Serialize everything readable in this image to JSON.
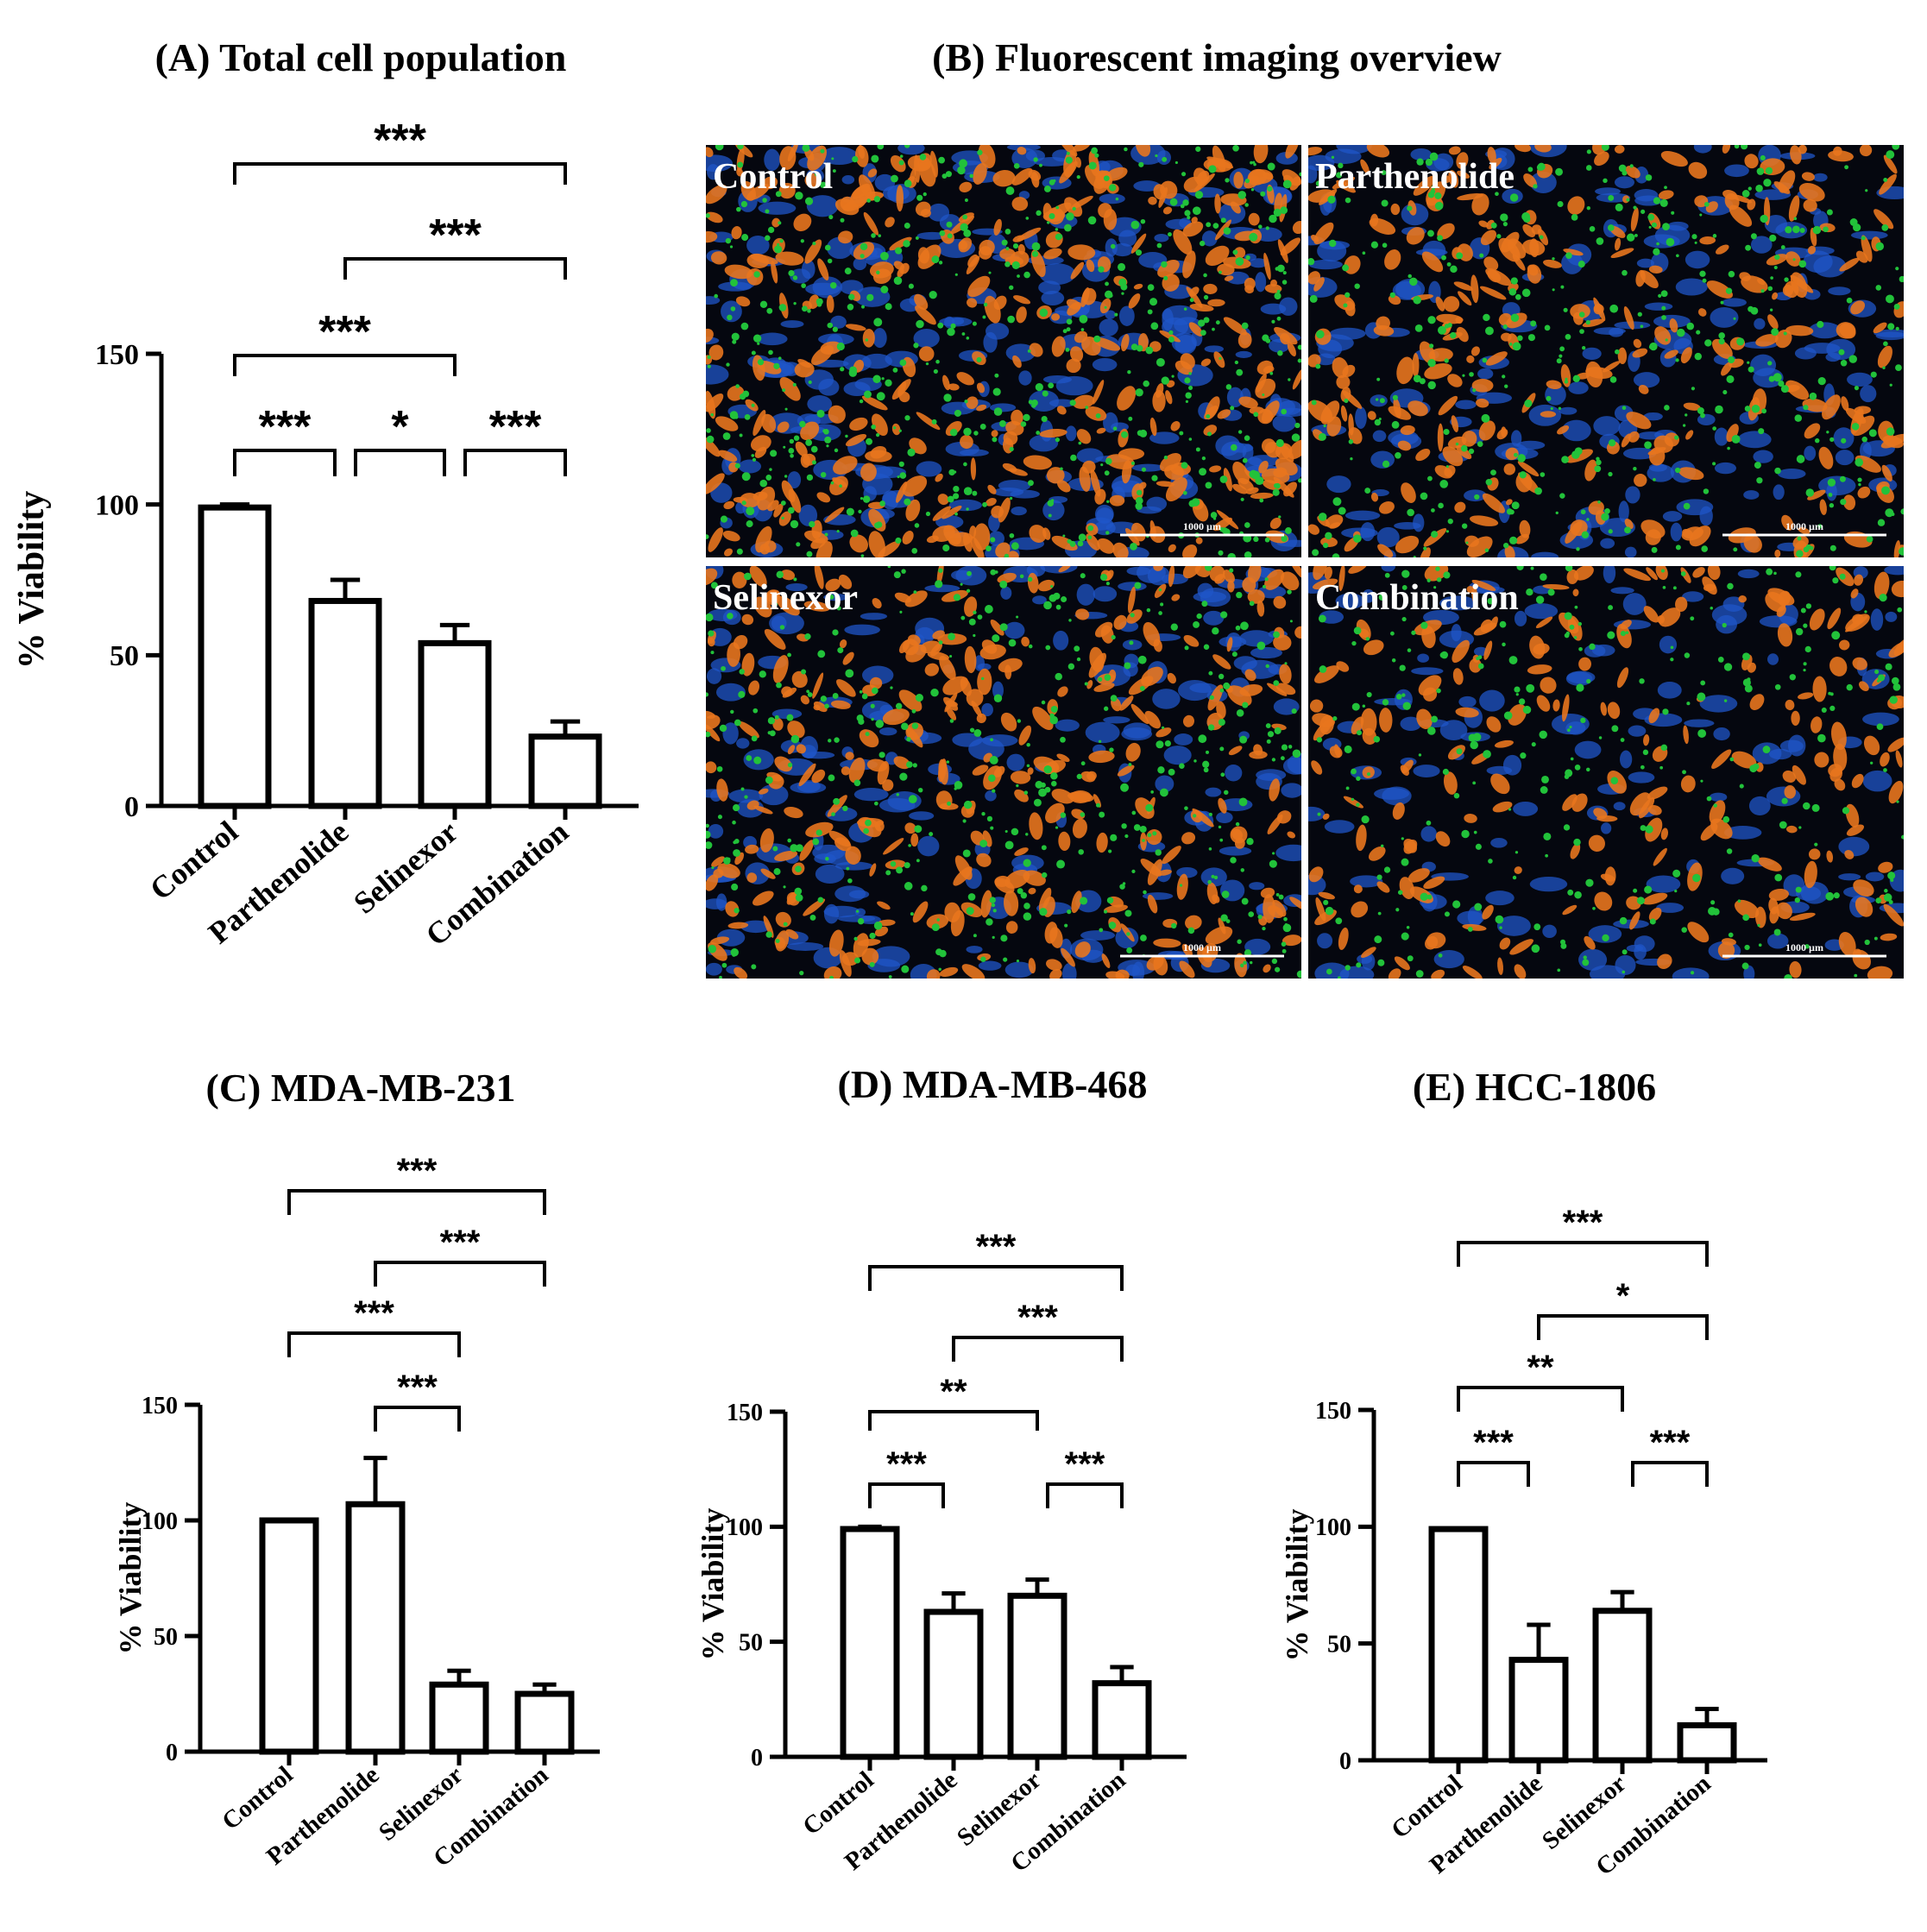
{
  "chart_data": [
    {
      "id": "A",
      "type": "bar",
      "title": "(A) Total cell population",
      "ylabel": "% Viability",
      "categories": [
        "Control",
        "Parthenolide",
        "Selinexor",
        "Combination"
      ],
      "values": [
        99,
        68,
        54,
        23
      ],
      "errors": [
        1,
        7,
        6,
        5
      ],
      "ylim": [
        0,
        150
      ],
      "yticks": [
        "0",
        "50",
        "100",
        "150"
      ],
      "significance": [
        {
          "from": 0,
          "to": 3,
          "label": "***"
        },
        {
          "from": 1,
          "to": 3,
          "label": "***"
        },
        {
          "from": 0,
          "to": 2,
          "label": "***"
        },
        {
          "from": 0,
          "to": 1,
          "label": "***"
        },
        {
          "from": 1,
          "to": 2,
          "label": "*"
        },
        {
          "from": 2,
          "to": 3,
          "label": "***"
        }
      ]
    },
    {
      "id": "C",
      "type": "bar",
      "title": "(C) MDA-MB-231",
      "ylabel": "% Viability",
      "categories": [
        "Control",
        "Parthenolide",
        "Selinexor",
        "Combination"
      ],
      "values": [
        100,
        107,
        29,
        25
      ],
      "errors": [
        0,
        20,
        6,
        4
      ],
      "ylim": [
        0,
        150
      ],
      "yticks": [
        "0",
        "50",
        "100",
        "150"
      ],
      "significance": [
        {
          "from": 0,
          "to": 3,
          "label": "***"
        },
        {
          "from": 1,
          "to": 3,
          "label": "***"
        },
        {
          "from": 0,
          "to": 2,
          "label": "***"
        },
        {
          "from": 1,
          "to": 2,
          "label": "***"
        }
      ]
    },
    {
      "id": "D",
      "type": "bar",
      "title": "(D) MDA-MB-468",
      "ylabel": "% Viability",
      "categories": [
        "Control",
        "Parthenolide",
        "Selinexor",
        "Combination"
      ],
      "values": [
        99,
        63,
        70,
        32
      ],
      "errors": [
        1,
        8,
        7,
        7
      ],
      "ylim": [
        0,
        150
      ],
      "yticks": [
        "0",
        "50",
        "100",
        "150"
      ],
      "significance": [
        {
          "from": 0,
          "to": 3,
          "label": "***"
        },
        {
          "from": 1,
          "to": 3,
          "label": "***"
        },
        {
          "from": 0,
          "to": 2,
          "label": "**"
        },
        {
          "from": 0,
          "to": 1,
          "label": "***"
        },
        {
          "from": 2,
          "to": 3,
          "label": "***"
        }
      ]
    },
    {
      "id": "E",
      "type": "bar",
      "title": "(E) HCC-1806",
      "ylabel": "% Viability",
      "categories": [
        "Control",
        "Parthenolide",
        "Selinexor",
        "Combination"
      ],
      "values": [
        99,
        43,
        64,
        15
      ],
      "errors": [
        0,
        15,
        8,
        7
      ],
      "ylim": [
        0,
        150
      ],
      "yticks": [
        "0",
        "50",
        "100",
        "150"
      ],
      "significance": [
        {
          "from": 0,
          "to": 3,
          "label": "***"
        },
        {
          "from": 1,
          "to": 3,
          "label": "*"
        },
        {
          "from": 0,
          "to": 2,
          "label": "**"
        },
        {
          "from": 0,
          "to": 1,
          "label": "***"
        },
        {
          "from": 2,
          "to": 3,
          "label": "***"
        }
      ]
    }
  ],
  "imaging": {
    "title": "(B)  Fluorescent imaging overview",
    "panels": [
      {
        "label": "Control",
        "scale_label": "1000 µm"
      },
      {
        "label": "Parthenolide",
        "scale_label": "1000 µm"
      },
      {
        "label": "Selinexor",
        "scale_label": "1000 µm"
      },
      {
        "label": "Combination",
        "scale_label": "1000 µm"
      }
    ],
    "colors": {
      "background": "#05070f",
      "orange": "#e8751e",
      "blue": "#1f55c8",
      "green": "#22c23a"
    }
  }
}
